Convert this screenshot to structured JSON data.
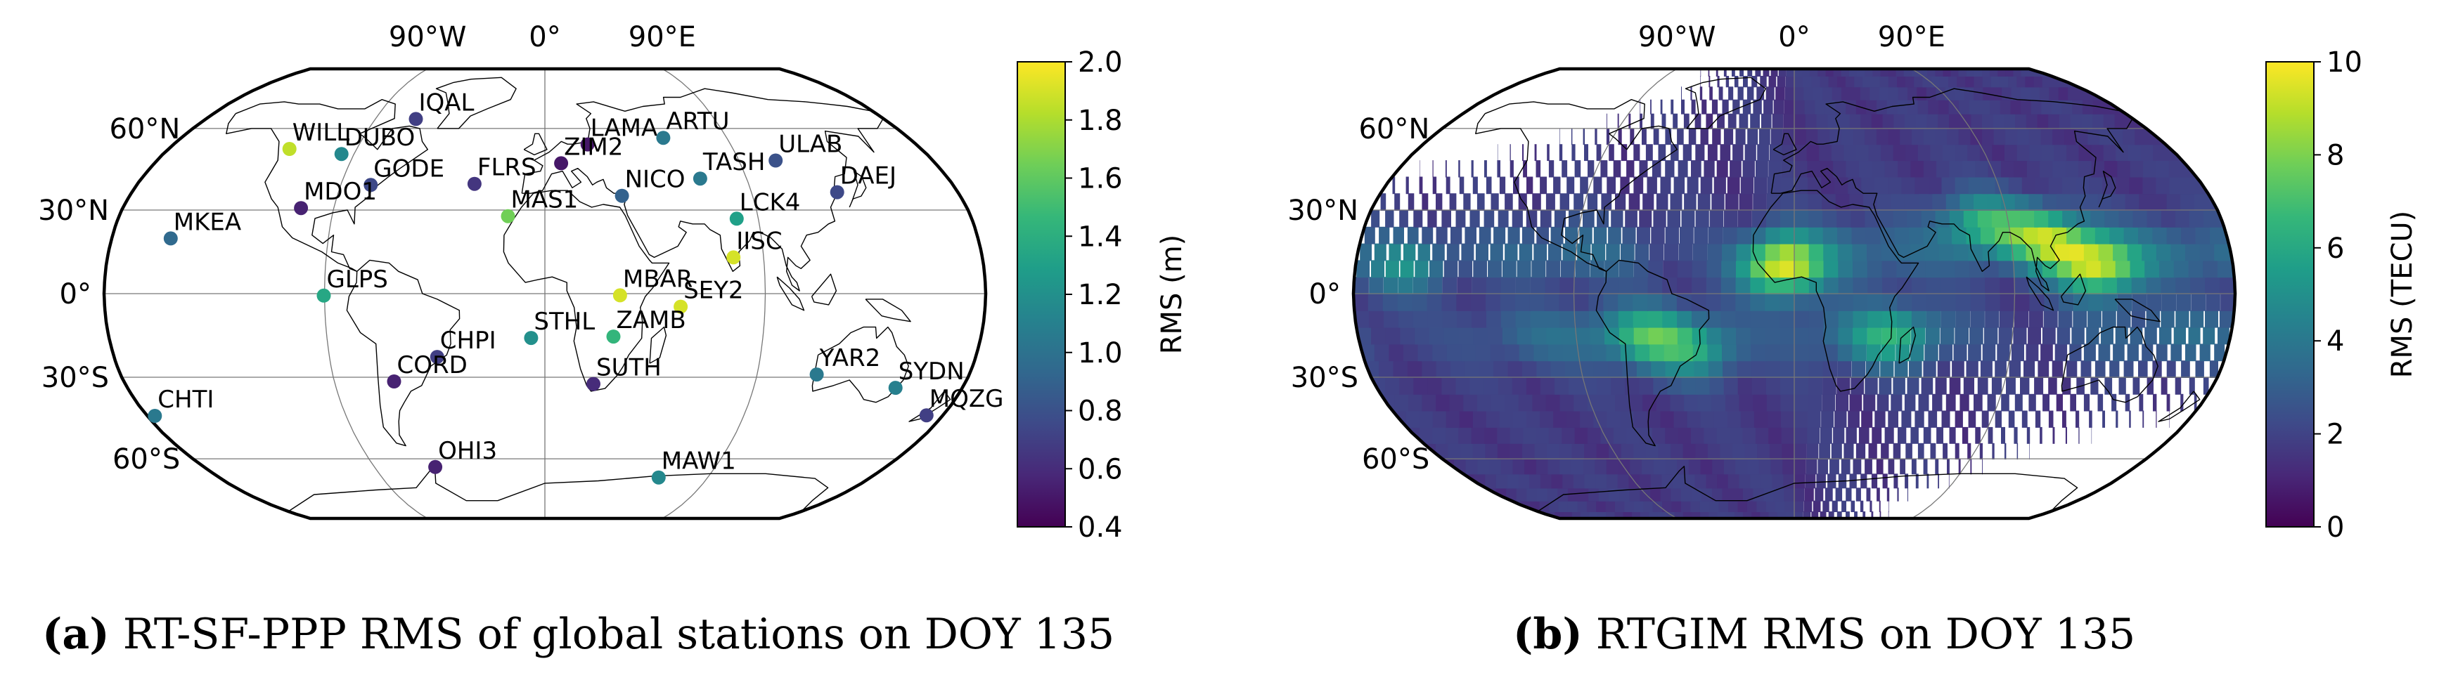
{
  "chart_data": [
    {
      "type": "scatter",
      "projection": "robinson",
      "lon_labels": [
        "90°W",
        "0°",
        "90°E"
      ],
      "lat_labels": [
        "60°N",
        "30°N",
        "0°",
        "30°S",
        "60°S"
      ],
      "colorbar": {
        "label": "RMS (m)",
        "min": 0.4,
        "max": 2.0,
        "ticks": [
          "0.4",
          "0.6",
          "0.8",
          "1.0",
          "1.2",
          "1.4",
          "1.6",
          "1.8",
          "2.0"
        ],
        "colormap": "viridis"
      },
      "stations": [
        {
          "name": "IQAL",
          "lon": -68.5,
          "lat": 63.8,
          "rms": 0.7
        },
        {
          "name": "WILL",
          "lon": -122.2,
          "lat": 52.2,
          "rms": 1.85
        },
        {
          "name": "DUBO",
          "lon": -95.9,
          "lat": 50.3,
          "rms": 1.15
        },
        {
          "name": "GODE",
          "lon": -76.8,
          "lat": 39.0,
          "rms": 0.75
        },
        {
          "name": "MDO1",
          "lon": -104.0,
          "lat": 30.7,
          "rms": 0.55
        },
        {
          "name": "FLRS",
          "lon": -31.1,
          "lat": 39.4,
          "rms": 0.65
        },
        {
          "name": "MAS1",
          "lon": -15.6,
          "lat": 27.8,
          "rms": 1.65
        },
        {
          "name": "LAMA",
          "lon": 20.7,
          "lat": 53.9,
          "rms": 0.5
        },
        {
          "name": "ZIM2",
          "lon": 7.5,
          "lat": 46.9,
          "rms": 0.5
        },
        {
          "name": "ARTU",
          "lon": 58.6,
          "lat": 56.4,
          "rms": 1.05
        },
        {
          "name": "ULAB",
          "lon": 107.1,
          "lat": 47.9,
          "rms": 0.8
        },
        {
          "name": "TASH",
          "lon": 69.3,
          "lat": 41.3,
          "rms": 1.05
        },
        {
          "name": "NICO",
          "lon": 33.4,
          "lat": 35.1,
          "rms": 0.9
        },
        {
          "name": "DAEJ",
          "lon": 127.4,
          "lat": 36.4,
          "rms": 0.75
        },
        {
          "name": "LCK4",
          "lon": 80.9,
          "lat": 26.9,
          "rms": 1.3
        },
        {
          "name": "IISC",
          "lon": 77.6,
          "lat": 13.0,
          "rms": 1.9
        },
        {
          "name": "MKEA",
          "lon": -155.5,
          "lat": 19.8,
          "rms": 0.95
        },
        {
          "name": "GLPS",
          "lon": -90.3,
          "lat": -0.7,
          "rms": 1.35
        },
        {
          "name": "MBAR",
          "lon": 30.7,
          "lat": -0.6,
          "rms": 1.9
        },
        {
          "name": "SEY2",
          "lon": 55.5,
          "lat": -4.7,
          "rms": 1.9
        },
        {
          "name": "STHL",
          "lon": -5.7,
          "lat": -15.9,
          "rms": 1.2
        },
        {
          "name": "ZAMB",
          "lon": 28.3,
          "lat": -15.4,
          "rms": 1.45
        },
        {
          "name": "CHPI",
          "lon": -45.0,
          "lat": -22.7,
          "rms": 0.7
        },
        {
          "name": "CORD",
          "lon": -64.5,
          "lat": -31.5,
          "rms": 0.55
        },
        {
          "name": "SUTH",
          "lon": 20.8,
          "lat": -32.4,
          "rms": 0.6
        },
        {
          "name": "YAR2",
          "lon": 115.3,
          "lat": -29.0,
          "rms": 1.05
        },
        {
          "name": "SYDN",
          "lon": 151.2,
          "lat": -33.8,
          "rms": 1.1
        },
        {
          "name": "MQZG",
          "lon": 172.6,
          "lat": -43.7,
          "rms": 0.7
        },
        {
          "name": "CHTI",
          "lon": -176.6,
          "lat": -43.9,
          "rms": 1.05
        },
        {
          "name": "OHI3",
          "lon": -57.9,
          "lat": -63.3,
          "rms": 0.55
        },
        {
          "name": "MAW1",
          "lon": 62.9,
          "lat": -67.6,
          "rms": 1.15
        }
      ]
    },
    {
      "type": "heatmap",
      "projection": "robinson",
      "lon_labels": [
        "90°W",
        "0°",
        "90°E"
      ],
      "lat_labels": [
        "60°N",
        "30°N",
        "0°",
        "30°S",
        "60°S"
      ],
      "colorbar": {
        "label": "RMS (TECU)",
        "min": 0,
        "max": 10,
        "ticks": [
          "0",
          "2",
          "4",
          "6",
          "8",
          "10"
        ],
        "colormap": "viridis"
      },
      "hotspots": [
        {
          "lon": -5,
          "lat": 10,
          "value": 9.5
        },
        {
          "lon": 105,
          "lat": 20,
          "value": 8.0
        },
        {
          "lon": 125,
          "lat": 10,
          "value": 8.5
        },
        {
          "lon": 80,
          "lat": 25,
          "value": 6.5
        },
        {
          "lon": -60,
          "lat": -15,
          "value": 6.0
        },
        {
          "lon": -40,
          "lat": -20,
          "value": 5.5
        },
        {
          "lon": -160,
          "lat": 10,
          "value": 5.0
        },
        {
          "lon": 40,
          "lat": -15,
          "value": 5.0
        }
      ]
    }
  ],
  "captions": [
    {
      "label": "(a)",
      "text": " RT-SF-PPP RMS of global stations on DOY 135"
    },
    {
      "label": "(b)",
      "text": " RTGIM RMS on DOY 135"
    }
  ]
}
